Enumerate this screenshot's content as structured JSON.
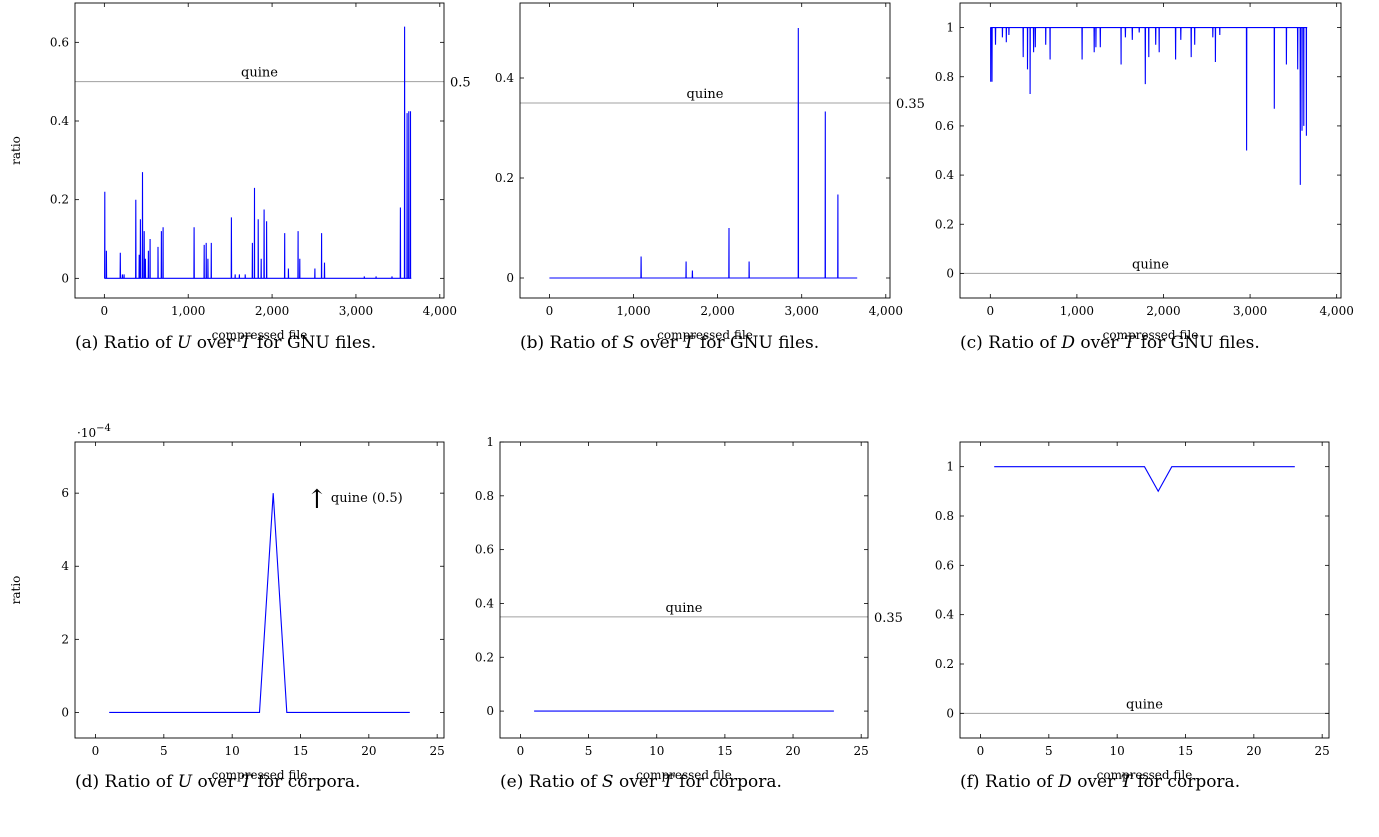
{
  "chart_data": [
    {
      "id": "a",
      "type": "line",
      "caption_prefix": "(a) Ratio of",
      "caption_var": "U",
      "caption_over": "over",
      "caption_denom": "T",
      "caption_suffix": "for GNU files.",
      "xlabel": "compressed file",
      "ylabel": "ratio",
      "xlim": [
        -350,
        4050
      ],
      "ylim": [
        -0.05,
        0.7
      ],
      "xticks": [
        0,
        1000,
        2000,
        3000,
        4000
      ],
      "xtick_labels": [
        "0",
        "1,000",
        "2,000",
        "3,000",
        "4,000"
      ],
      "yticks": [
        0,
        0.2,
        0.4,
        0.6
      ],
      "ytick_labels": [
        "0",
        "0.2",
        "0.4",
        "0.6"
      ],
      "grid": false,
      "series_color": "#0000ff",
      "reference_line": {
        "value": 0.5,
        "color": "#a0a0a0",
        "label": "quine",
        "value_label": "0.5"
      },
      "x_range": [
        0,
        3660
      ],
      "baseline": 0,
      "spikes": [
        [
          5,
          0.22
        ],
        [
          25,
          0.07
        ],
        [
          190,
          0.065
        ],
        [
          215,
          0.01
        ],
        [
          235,
          0.01
        ],
        [
          375,
          0.2
        ],
        [
          415,
          0.06
        ],
        [
          430,
          0.15
        ],
        [
          455,
          0.27
        ],
        [
          475,
          0.12
        ],
        [
          490,
          0.05
        ],
        [
          525,
          0.07
        ],
        [
          545,
          0.1
        ],
        [
          640,
          0.08
        ],
        [
          680,
          0.12
        ],
        [
          700,
          0.13
        ],
        [
          1070,
          0.13
        ],
        [
          1190,
          0.085
        ],
        [
          1215,
          0.09
        ],
        [
          1235,
          0.05
        ],
        [
          1275,
          0.09
        ],
        [
          1515,
          0.155
        ],
        [
          1560,
          0.01
        ],
        [
          1610,
          0.01
        ],
        [
          1680,
          0.01
        ],
        [
          1765,
          0.09
        ],
        [
          1790,
          0.23
        ],
        [
          1835,
          0.15
        ],
        [
          1870,
          0.05
        ],
        [
          1905,
          0.175
        ],
        [
          1935,
          0.145
        ],
        [
          2150,
          0.115
        ],
        [
          2195,
          0.025
        ],
        [
          2310,
          0.12
        ],
        [
          2330,
          0.05
        ],
        [
          2510,
          0.025
        ],
        [
          2590,
          0.115
        ],
        [
          2625,
          0.04
        ],
        [
          3100,
          0.005
        ],
        [
          3240,
          0.005
        ],
        [
          3430,
          0.005
        ],
        [
          3530,
          0.18
        ],
        [
          3580,
          0.64
        ],
        [
          3610,
          0.42
        ],
        [
          3630,
          0.425
        ],
        [
          3650,
          0.425
        ]
      ]
    },
    {
      "id": "b",
      "type": "line",
      "caption_prefix": "(b) Ratio of",
      "caption_var": "S",
      "caption_over": "over",
      "caption_denom": "T",
      "caption_suffix": "for GNU files.",
      "xlabel": "compressed file",
      "ylabel": "",
      "xlim": [
        -350,
        4050
      ],
      "ylim": [
        -0.04,
        0.55
      ],
      "xticks": [
        0,
        1000,
        2000,
        3000,
        4000
      ],
      "xtick_labels": [
        "0",
        "1,000",
        "2,000",
        "3,000",
        "4,000"
      ],
      "yticks": [
        0,
        0.2,
        0.4
      ],
      "ytick_labels": [
        "0",
        "0.2",
        "0.4"
      ],
      "grid": false,
      "series_color": "#0000ff",
      "reference_line": {
        "value": 0.35,
        "color": "#a0a0a0",
        "label": "quine",
        "value_label": "0.35"
      },
      "x_range": [
        0,
        3660
      ],
      "baseline": 0,
      "spikes": [
        [
          1090,
          0.043
        ],
        [
          1625,
          0.033
        ],
        [
          1700,
          0.015
        ],
        [
          2135,
          0.1
        ],
        [
          2375,
          0.033
        ],
        [
          2960,
          0.5
        ],
        [
          3280,
          0.333
        ],
        [
          3430,
          0.167
        ]
      ]
    },
    {
      "id": "c",
      "type": "line",
      "caption_prefix": "(c) Ratio of",
      "caption_var": "D",
      "caption_over": "over",
      "caption_denom": "T",
      "caption_suffix": "for GNU files.",
      "xlabel": "compressed file",
      "ylabel": "",
      "xlim": [
        -350,
        4050
      ],
      "ylim": [
        -0.1,
        1.1
      ],
      "xticks": [
        0,
        1000,
        2000,
        3000,
        4000
      ],
      "xtick_labels": [
        "0",
        "1,000",
        "2,000",
        "3,000",
        "4,000"
      ],
      "yticks": [
        0,
        0.2,
        0.4,
        0.6,
        0.8,
        1
      ],
      "ytick_labels": [
        "0",
        "0.2",
        "0.4",
        "0.6",
        "0.8",
        "1"
      ],
      "grid": false,
      "series_color": "#0000ff",
      "reference_line": {
        "value": 0,
        "color": "#a0a0a0",
        "label": "quine",
        "value_label": "0"
      },
      "x_range": [
        0,
        3660
      ],
      "baseline": 1,
      "spikes": [
        [
          5,
          0.78
        ],
        [
          20,
          0.78
        ],
        [
          60,
          0.93
        ],
        [
          140,
          0.96
        ],
        [
          185,
          0.94
        ],
        [
          215,
          0.97
        ],
        [
          380,
          0.88
        ],
        [
          430,
          0.83
        ],
        [
          460,
          0.73
        ],
        [
          500,
          0.9
        ],
        [
          520,
          0.92
        ],
        [
          640,
          0.93
        ],
        [
          690,
          0.87
        ],
        [
          1060,
          0.87
        ],
        [
          1200,
          0.9
        ],
        [
          1220,
          0.92
        ],
        [
          1270,
          0.92
        ],
        [
          1510,
          0.85
        ],
        [
          1560,
          0.96
        ],
        [
          1640,
          0.95
        ],
        [
          1720,
          0.98
        ],
        [
          1790,
          0.77
        ],
        [
          1830,
          0.88
        ],
        [
          1910,
          0.93
        ],
        [
          1950,
          0.9
        ],
        [
          2140,
          0.87
        ],
        [
          2200,
          0.95
        ],
        [
          2320,
          0.88
        ],
        [
          2360,
          0.93
        ],
        [
          2570,
          0.96
        ],
        [
          2600,
          0.86
        ],
        [
          2650,
          0.97
        ],
        [
          2960,
          0.5
        ],
        [
          3280,
          0.67
        ],
        [
          3420,
          0.85
        ],
        [
          3550,
          0.83
        ],
        [
          3580,
          0.36
        ],
        [
          3600,
          0.58
        ],
        [
          3620,
          0.6
        ],
        [
          3650,
          0.56
        ]
      ]
    },
    {
      "id": "d",
      "type": "line",
      "caption_prefix": "(d) Ratio of",
      "caption_var": "U",
      "caption_over": "over",
      "caption_denom": "T",
      "caption_suffix": "for corpora.",
      "xlabel": "compressed file",
      "ylabel": "ratio",
      "scale_label": "·10",
      "scale_exponent": "−4",
      "xlim": [
        -1.5,
        25.5
      ],
      "ylim": [
        -0.7,
        7.4
      ],
      "xticks": [
        0,
        5,
        10,
        15,
        20,
        25
      ],
      "xtick_labels": [
        "0",
        "5",
        "10",
        "15",
        "20",
        "25"
      ],
      "yticks": [
        0,
        2,
        4,
        6
      ],
      "ytick_labels": [
        "0",
        "2",
        "4",
        "6"
      ],
      "grid": false,
      "series_color": "#0000ff",
      "annotation": {
        "arrow": "↑",
        "text": "quine (0.5)"
      },
      "x": [
        1,
        2,
        3,
        4,
        5,
        6,
        7,
        8,
        9,
        10,
        11,
        12,
        13,
        14,
        15,
        16,
        17,
        18,
        19,
        20,
        21,
        22,
        23
      ],
      "y": [
        0,
        0,
        0,
        0,
        0,
        0,
        0,
        0,
        0,
        0,
        0,
        0,
        6,
        0,
        0,
        0,
        0,
        0,
        0,
        0,
        0,
        0,
        0
      ]
    },
    {
      "id": "e",
      "type": "line",
      "caption_prefix": "(e) Ratio of",
      "caption_var": "S",
      "caption_over": "over",
      "caption_denom": "T",
      "caption_suffix": "for corpora.",
      "xlabel": "compressed file",
      "ylabel": "",
      "xlim": [
        -1.5,
        25.5
      ],
      "ylim": [
        -0.1,
        1.0
      ],
      "xticks": [
        0,
        5,
        10,
        15,
        20,
        25
      ],
      "xtick_labels": [
        "0",
        "5",
        "10",
        "15",
        "20",
        "25"
      ],
      "yticks": [
        0,
        0.2,
        0.4,
        0.6,
        0.8,
        1
      ],
      "ytick_labels": [
        "0",
        "0.2",
        "0.4",
        "0.6",
        "0.8",
        "1"
      ],
      "grid": false,
      "series_color": "#0000ff",
      "reference_line": {
        "value": 0.35,
        "color": "#a0a0a0",
        "label": "quine",
        "value_label": "0.35"
      },
      "x": [
        1,
        2,
        3,
        4,
        5,
        6,
        7,
        8,
        9,
        10,
        11,
        12,
        13,
        14,
        15,
        16,
        17,
        18,
        19,
        20,
        21,
        22,
        23
      ],
      "y": [
        0,
        0,
        0,
        0,
        0,
        0,
        0,
        0,
        0,
        0,
        0,
        0,
        0,
        0,
        0,
        0,
        0,
        0,
        0,
        0,
        0,
        0,
        0
      ]
    },
    {
      "id": "f",
      "type": "line",
      "caption_prefix": "(f) Ratio of",
      "caption_var": "D",
      "caption_over": "over",
      "caption_denom": "T",
      "caption_suffix": "for corpora.",
      "xlabel": "compressed file",
      "ylabel": "",
      "xlim": [
        -1.5,
        25.5
      ],
      "ylim": [
        -0.1,
        1.1
      ],
      "xticks": [
        0,
        5,
        10,
        15,
        20,
        25
      ],
      "xtick_labels": [
        "0",
        "5",
        "10",
        "15",
        "20",
        "25"
      ],
      "yticks": [
        0,
        0.2,
        0.4,
        0.6,
        0.8,
        1
      ],
      "ytick_labels": [
        "0",
        "0.2",
        "0.4",
        "0.6",
        "0.8",
        "1"
      ],
      "grid": false,
      "series_color": "#0000ff",
      "reference_line": {
        "value": 0,
        "color": "#a0a0a0",
        "label": "quine",
        "value_label": "0"
      },
      "x": [
        1,
        2,
        3,
        4,
        5,
        6,
        7,
        8,
        9,
        10,
        11,
        12,
        13,
        14,
        15,
        16,
        17,
        18,
        19,
        20,
        21,
        22,
        23
      ],
      "y": [
        1,
        1,
        1,
        1,
        1,
        1,
        1,
        1,
        1,
        1,
        1,
        1,
        0.9,
        1,
        1,
        1,
        1,
        1,
        1,
        1,
        1,
        1,
        1
      ]
    }
  ]
}
